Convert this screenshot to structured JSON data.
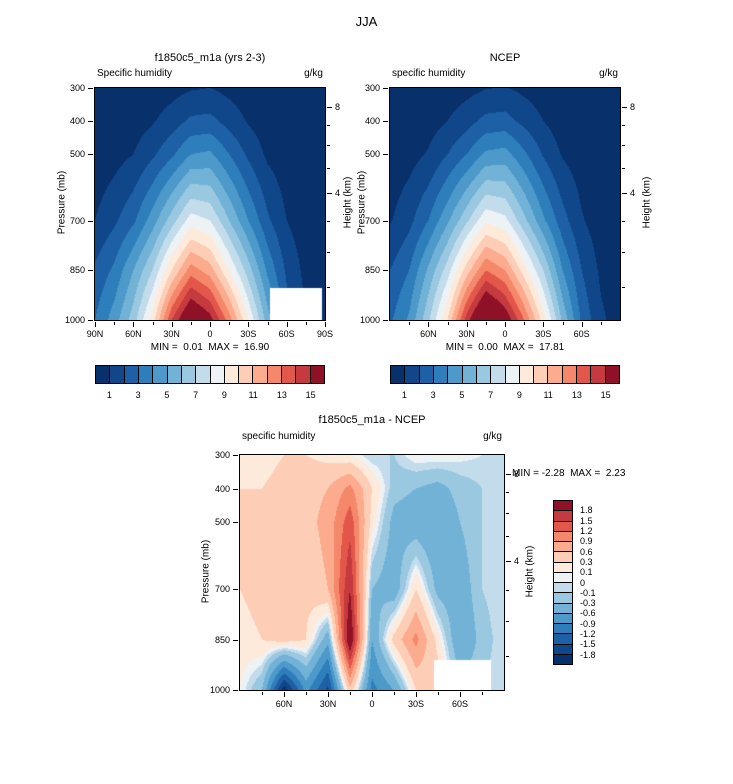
{
  "page": {
    "title": "JJA"
  },
  "chart_data": [
    {
      "id": "model",
      "type": "heatmap",
      "title": "f1850c5_m1a (yrs 2-3)",
      "field_label": "Specific humidity",
      "units": "g/kg",
      "y_axis_label": "Pressure (mb)",
      "y2_axis_label": "Height (km)",
      "stats": "MIN =  0.01  MAX =  16.90",
      "xlim": [
        90,
        -90
      ],
      "ylim": [
        300,
        1000
      ],
      "x": [
        90,
        75,
        60,
        45,
        30,
        15,
        0,
        -15,
        -30,
        -45,
        -60,
        -75,
        -90
      ],
      "y": [
        300,
        400,
        500,
        700,
        850,
        1000
      ],
      "grid": [
        [
          0.05,
          0.1,
          0.2,
          0.35,
          0.6,
          0.9,
          1.0,
          0.7,
          0.4,
          0.2,
          0.1,
          0.05,
          0.02
        ],
        [
          0.1,
          0.3,
          0.5,
          0.9,
          1.5,
          2.2,
          2.3,
          1.6,
          0.9,
          0.4,
          0.2,
          0.1,
          0.05
        ],
        [
          0.3,
          0.6,
          1.0,
          1.8,
          2.8,
          4.0,
          4.2,
          3.0,
          1.8,
          0.8,
          0.4,
          0.2,
          0.1
        ],
        [
          1.0,
          1.8,
          2.8,
          4.5,
          6.5,
          8.5,
          8.0,
          6.0,
          4.0,
          2.2,
          1.0,
          0.4,
          0.2
        ],
        [
          2.2,
          3.2,
          5.0,
          7.0,
          10.0,
          12.5,
          11.5,
          9.0,
          6.5,
          3.8,
          1.8,
          0.7,
          0.3
        ],
        [
          3.0,
          4.5,
          6.5,
          9.5,
          14.0,
          16.9,
          15.5,
          12.5,
          9.0,
          5.5,
          2.5,
          1.0,
          0.4
        ]
      ],
      "levels": [
        1,
        2,
        3,
        4,
        5,
        6,
        7,
        8,
        9,
        10,
        11,
        12,
        13,
        14,
        15
      ],
      "colors": [
        "#08306b",
        "#10478a",
        "#1d60a5",
        "#2f7ebc",
        "#4c99ca",
        "#72b2d7",
        "#9ac8e0",
        "#c3dcec",
        "#edf2f5",
        "#fdeadb",
        "#fdceb5",
        "#fcab8e",
        "#f5886b",
        "#e2574a",
        "#c43a3e",
        "#8f1127"
      ],
      "xticks": [
        {
          "lat": 90,
          "label": "90N"
        },
        {
          "lat": 60,
          "label": "60N"
        },
        {
          "lat": 30,
          "label": "30N"
        },
        {
          "lat": 0,
          "label": "0"
        },
        {
          "lat": -30,
          "label": "30S"
        },
        {
          "lat": -60,
          "label": "60S"
        },
        {
          "lat": -90,
          "label": "90S"
        }
      ],
      "xminor": [
        75,
        45,
        15,
        -15,
        -45,
        -75
      ],
      "yticks": [
        300,
        400,
        500,
        700,
        850,
        1000
      ],
      "height_ticks": [
        {
          "p": 356,
          "label": "8"
        },
        {
          "p": 616,
          "label": "4"
        }
      ],
      "height_minor": [
        411,
        472,
        540,
        701,
        795,
        899
      ],
      "masks": [
        {
          "lat0": -47,
          "lat1": -87.5,
          "p0": 903,
          "p1": 1000
        }
      ],
      "colorbar": {
        "orientation": "horizontal",
        "labels": [
          {
            "i": 1,
            "text": "1"
          },
          {
            "i": 3,
            "text": "3"
          },
          {
            "i": 5,
            "text": "5"
          },
          {
            "i": 7,
            "text": "7"
          },
          {
            "i": 9,
            "text": "9"
          },
          {
            "i": 11,
            "text": "11"
          },
          {
            "i": 13,
            "text": "13"
          },
          {
            "i": 15,
            "text": "15"
          }
        ]
      }
    },
    {
      "id": "ncep",
      "type": "heatmap",
      "title": "NCEP",
      "field_label": "specific humidity",
      "units": "g/kg",
      "y_axis_label": "Pressure (mb)",
      "y2_axis_label": "Height (km)",
      "stats": "MIN =  0.00  MAX =  17.81",
      "xlim": [
        90,
        -90
      ],
      "ylim": [
        300,
        1000
      ],
      "x": [
        90,
        75,
        60,
        45,
        30,
        15,
        0,
        -15,
        -30,
        -45,
        -60,
        -75,
        -90
      ],
      "y": [
        300,
        400,
        500,
        700,
        850,
        1000
      ],
      "grid": [
        [
          0.05,
          0.1,
          0.2,
          0.4,
          0.65,
          0.95,
          1.05,
          0.75,
          0.45,
          0.2,
          0.1,
          0.05,
          0.02
        ],
        [
          0.1,
          0.3,
          0.55,
          1.0,
          1.6,
          2.3,
          2.4,
          1.7,
          1.0,
          0.45,
          0.2,
          0.1,
          0.05
        ],
        [
          0.3,
          0.6,
          1.1,
          2.0,
          3.0,
          4.2,
          4.4,
          3.2,
          1.9,
          0.9,
          0.45,
          0.2,
          0.1
        ],
        [
          0.9,
          1.7,
          3.0,
          4.8,
          6.8,
          8.8,
          8.3,
          6.3,
          4.2,
          2.4,
          1.1,
          0.45,
          0.2
        ],
        [
          2.0,
          3.0,
          5.2,
          7.5,
          10.5,
          13.0,
          12.0,
          9.5,
          7.0,
          4.0,
          2.0,
          0.8,
          0.35
        ],
        [
          2.8,
          4.2,
          6.8,
          10.0,
          14.5,
          17.8,
          16.0,
          13.0,
          9.5,
          5.8,
          2.8,
          1.2,
          0.5
        ]
      ],
      "levels": [
        1,
        2,
        3,
        4,
        5,
        6,
        7,
        8,
        9,
        10,
        11,
        12,
        13,
        14,
        15
      ],
      "colors": [
        "#08306b",
        "#10478a",
        "#1d60a5",
        "#2f7ebc",
        "#4c99ca",
        "#72b2d7",
        "#9ac8e0",
        "#c3dcec",
        "#edf2f5",
        "#fdeadb",
        "#fdceb5",
        "#fcab8e",
        "#f5886b",
        "#e2574a",
        "#c43a3e",
        "#8f1127"
      ],
      "xticks": [
        {
          "lat": 60,
          "label": "60N"
        },
        {
          "lat": 30,
          "label": "30N"
        },
        {
          "lat": 0,
          "label": "0"
        },
        {
          "lat": -30,
          "label": "30S"
        },
        {
          "lat": -60,
          "label": "60S"
        }
      ],
      "xminor": [
        75,
        45,
        15,
        -15,
        -45,
        -75
      ],
      "yticks": [
        300,
        400,
        500,
        700,
        850,
        1000
      ],
      "height_ticks": [
        {
          "p": 356,
          "label": "8"
        },
        {
          "p": 616,
          "label": "4"
        }
      ],
      "height_minor": [
        411,
        472,
        540,
        701,
        795,
        899
      ],
      "masks": [],
      "colorbar": {
        "orientation": "horizontal",
        "labels": [
          {
            "i": 1,
            "text": "1"
          },
          {
            "i": 3,
            "text": "3"
          },
          {
            "i": 5,
            "text": "5"
          },
          {
            "i": 7,
            "text": "7"
          },
          {
            "i": 9,
            "text": "9"
          },
          {
            "i": 11,
            "text": "11"
          },
          {
            "i": 13,
            "text": "13"
          },
          {
            "i": 15,
            "text": "15"
          }
        ]
      }
    },
    {
      "id": "diff",
      "type": "heatmap",
      "title": "f1850c5_m1a - NCEP",
      "field_label": "specific humidity",
      "units": "g/kg",
      "y_axis_label": "Pressure (mb)",
      "y2_axis_label": "Height (km)",
      "stats": "MIN = -2.28  MAX =  2.23",
      "xlim": [
        90,
        -90
      ],
      "ylim": [
        300,
        1000
      ],
      "x": [
        90,
        75,
        60,
        45,
        30,
        15,
        0,
        -15,
        -30,
        -45,
        -60,
        -75,
        -90
      ],
      "y": [
        300,
        400,
        500,
        700,
        850,
        1000
      ],
      "grid": [
        [
          0.2,
          0.2,
          0.3,
          0.3,
          0.2,
          0.1,
          -0.1,
          -0.1,
          0.1,
          0.1,
          0.05,
          0.0,
          0.0
        ],
        [
          0.3,
          0.3,
          0.4,
          0.5,
          0.6,
          1.0,
          0.3,
          -0.2,
          -0.3,
          -0.4,
          -0.2,
          -0.1,
          0.0
        ],
        [
          0.3,
          0.4,
          0.4,
          0.5,
          0.7,
          1.4,
          0.2,
          -0.4,
          -0.5,
          -0.6,
          -0.3,
          -0.1,
          0.0
        ],
        [
          0.3,
          0.4,
          0.5,
          0.4,
          0.6,
          1.8,
          -0.3,
          -0.5,
          0.3,
          -0.4,
          -0.5,
          -0.1,
          0.0
        ],
        [
          0.2,
          0.3,
          0.4,
          0.3,
          -0.5,
          2.2,
          -0.6,
          0.4,
          1.0,
          0.2,
          -0.6,
          -0.2,
          0.0
        ],
        [
          0.1,
          -0.3,
          -2.0,
          -0.8,
          -1.6,
          0.5,
          -1.0,
          -0.6,
          0.3,
          0.5,
          -0.2,
          -0.1,
          0.0
        ]
      ],
      "levels": [
        -1.8,
        -1.5,
        -1.2,
        -0.9,
        -0.6,
        -0.3,
        -0.1,
        0,
        0.1,
        0.3,
        0.6,
        0.9,
        1.2,
        1.5,
        1.8
      ],
      "colors": [
        "#08306b",
        "#10478a",
        "#1d60a5",
        "#2f7ebc",
        "#4c99ca",
        "#72b2d7",
        "#9ac8e0",
        "#c3dcec",
        "#edf2f5",
        "#fdeadb",
        "#fdceb5",
        "#fcab8e",
        "#f5886b",
        "#e2574a",
        "#c43a3e",
        "#8f1127"
      ],
      "xticks": [
        {
          "lat": 60,
          "label": "60N"
        },
        {
          "lat": 30,
          "label": "30N"
        },
        {
          "lat": 0,
          "label": "0"
        },
        {
          "lat": -30,
          "label": "30S"
        },
        {
          "lat": -60,
          "label": "60S"
        }
      ],
      "xminor": [
        75,
        45,
        15,
        -15,
        -45,
        -75
      ],
      "yticks": [
        300,
        400,
        500,
        700,
        850,
        1000
      ],
      "height_ticks": [
        {
          "p": 356,
          "label": "8"
        },
        {
          "p": 616,
          "label": "4"
        }
      ],
      "height_minor": [
        411,
        472,
        540,
        701,
        795,
        899
      ],
      "masks": [
        {
          "lat0": -42,
          "lat1": -81,
          "p0": 912,
          "p1": 1000
        }
      ],
      "colorbar": {
        "orientation": "vertical",
        "labels": [
          {
            "i": 1,
            "text": "1.8"
          },
          {
            "i": 2,
            "text": "1.5"
          },
          {
            "i": 3,
            "text": "1.2"
          },
          {
            "i": 4,
            "text": "0.9"
          },
          {
            "i": 5,
            "text": "0.6"
          },
          {
            "i": 6,
            "text": "0.3"
          },
          {
            "i": 7,
            "text": "0.1"
          },
          {
            "i": 8,
            "text": "0"
          },
          {
            "i": 9,
            "text": "-0.1"
          },
          {
            "i": 10,
            "text": "-0.3"
          },
          {
            "i": 11,
            "text": "-0.6"
          },
          {
            "i": 12,
            "text": "-0.9"
          },
          {
            "i": 13,
            "text": "-1.2"
          },
          {
            "i": 14,
            "text": "-1.5"
          },
          {
            "i": 15,
            "text": "-1.8"
          }
        ]
      }
    }
  ]
}
